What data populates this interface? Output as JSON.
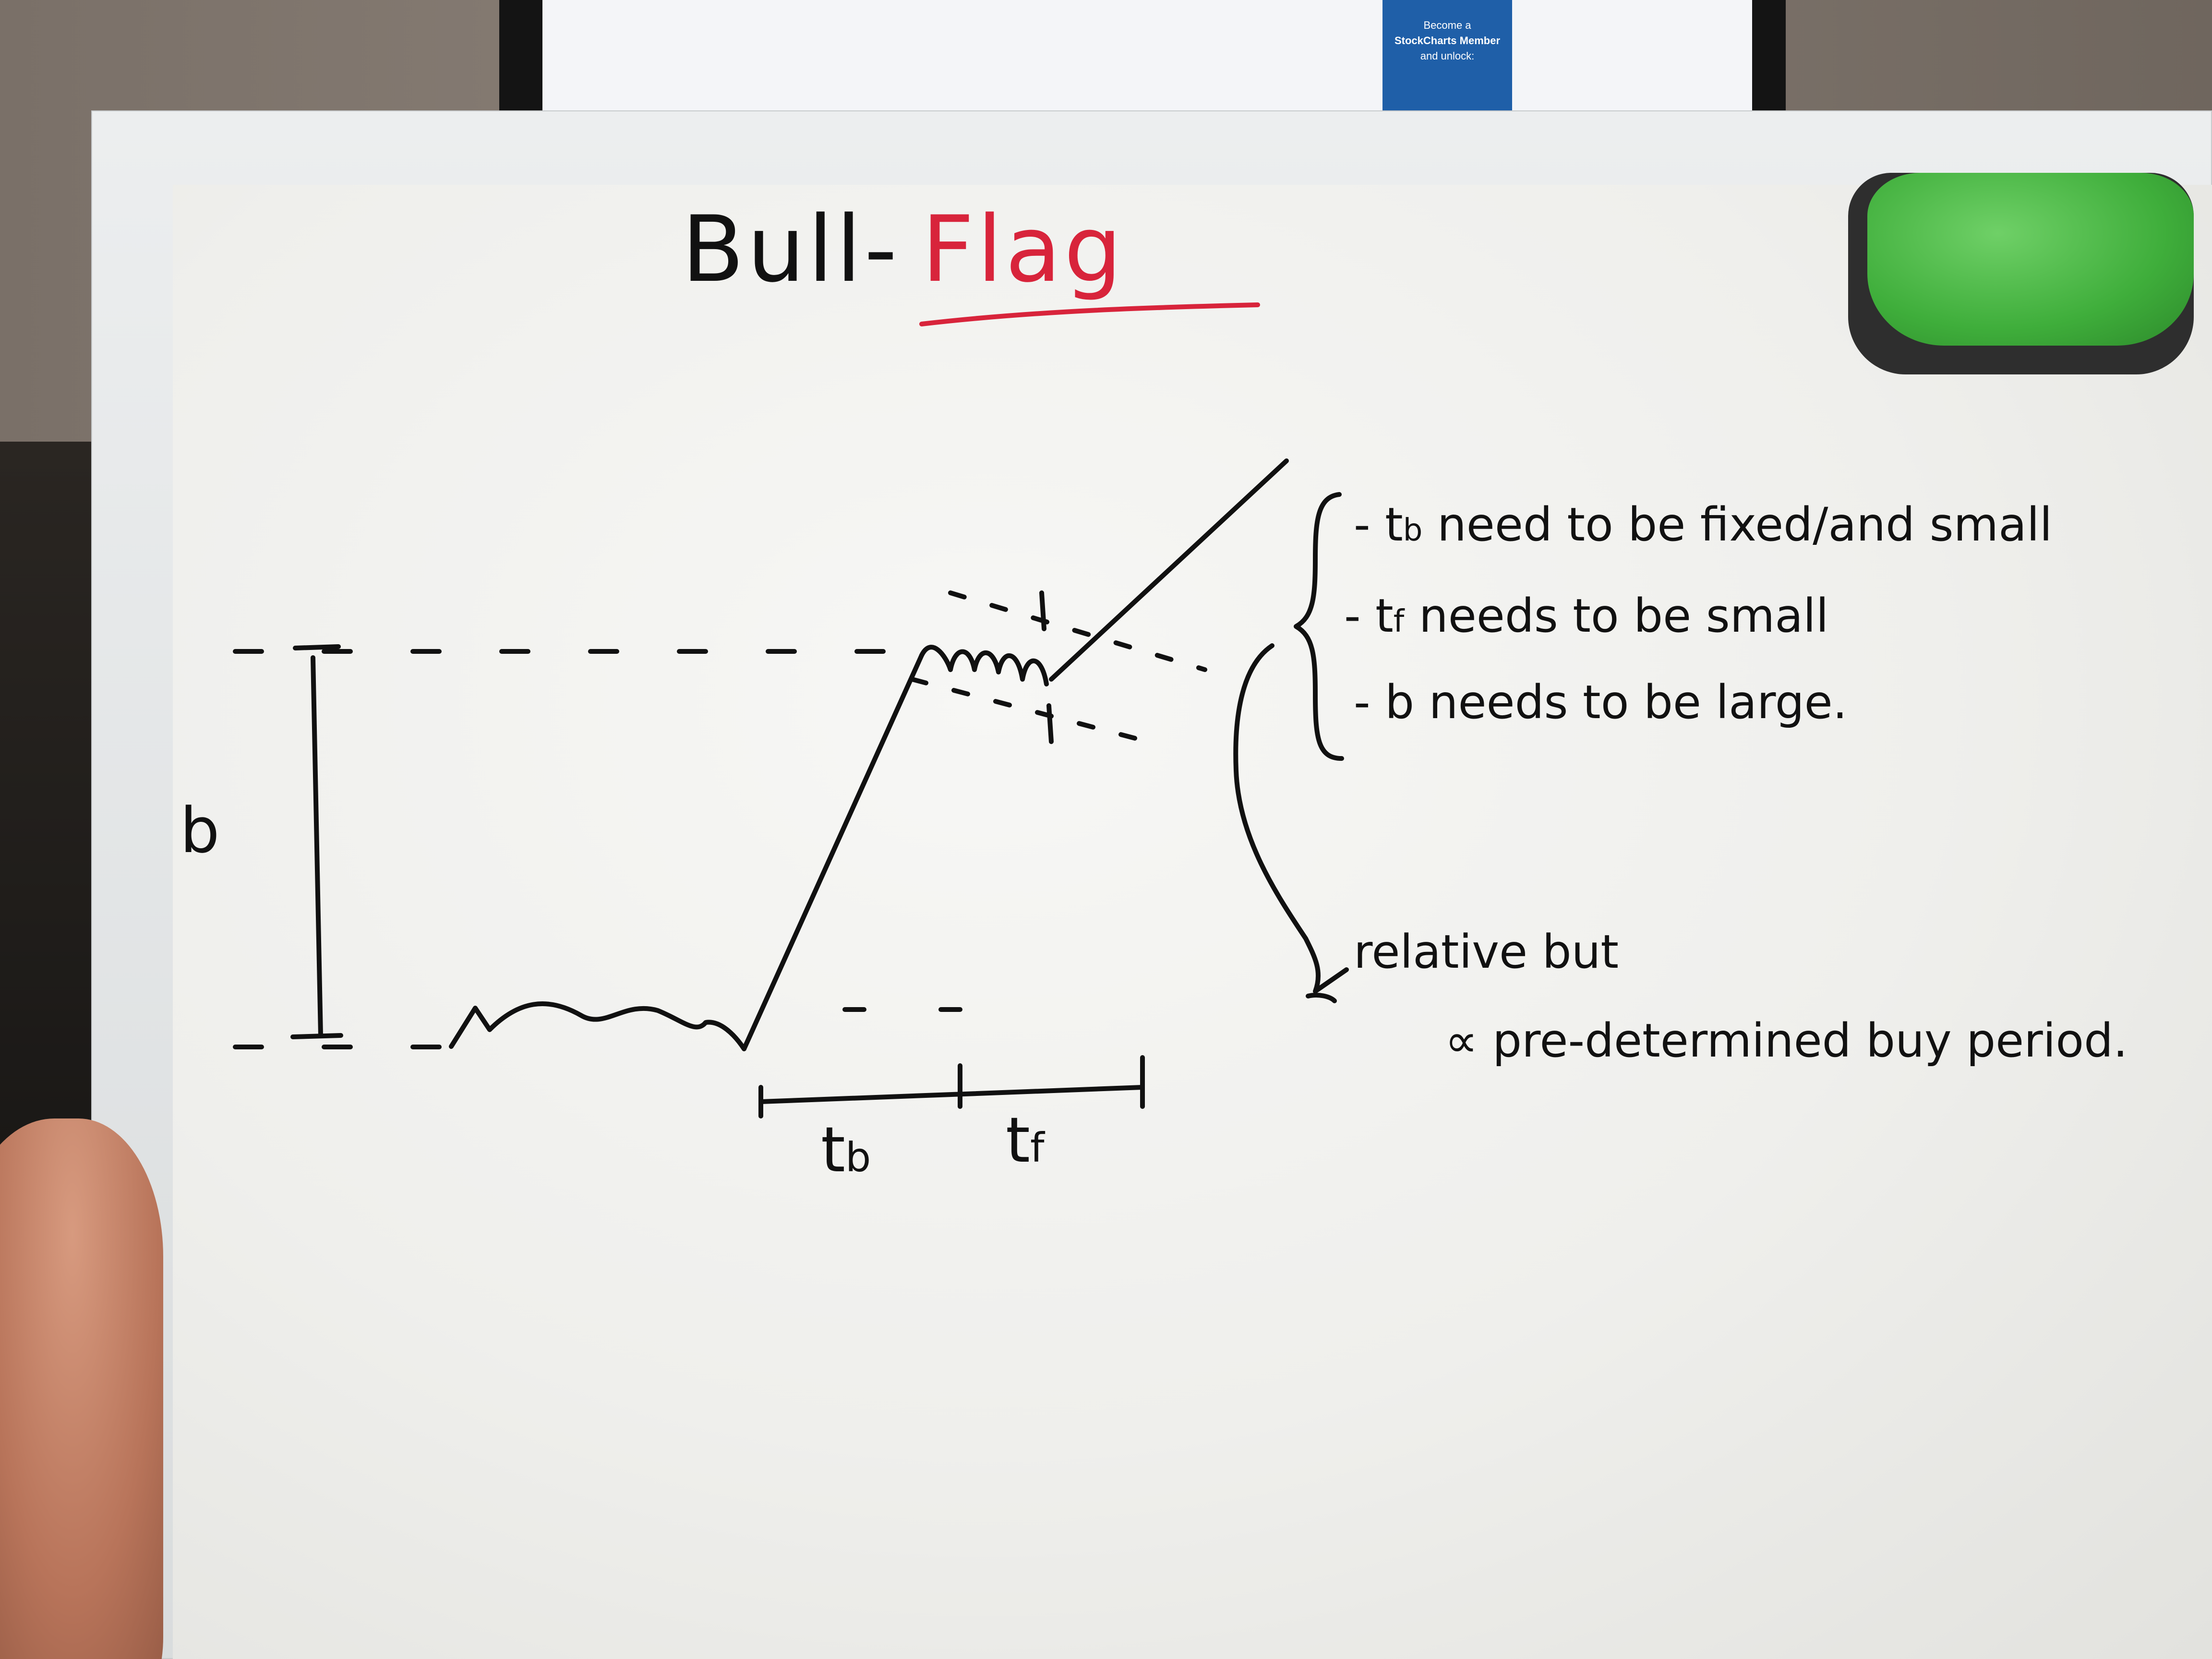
{
  "whiteboard": {
    "title_bull": "Bull-",
    "title_flag": "Flag",
    "label_b": "b",
    "label_tb_axis": "t",
    "label_tb_axis_sub": "b",
    "label_tf_axis": "t",
    "label_tf_axis_sub": "f",
    "notes": [
      {
        "dash": "-",
        "main": "t",
        "sub": "b",
        "text": " need to be fixed/and small"
      },
      {
        "dash": "-",
        "main": "t",
        "sub": "f",
        "text": " needs to be small"
      },
      {
        "dash": "-",
        "main": "b",
        "sub": "",
        "text": " needs to be large."
      }
    ],
    "note_relative": "relative but",
    "note_buy_period": "∝  pre-determined buy period.",
    "ink_colors": {
      "black": "#111111",
      "red": "#d8243b"
    }
  },
  "background": {
    "monitor_ad": {
      "line1": "Become a",
      "line2": "StockCharts Member",
      "line3": "and unlock:"
    }
  }
}
